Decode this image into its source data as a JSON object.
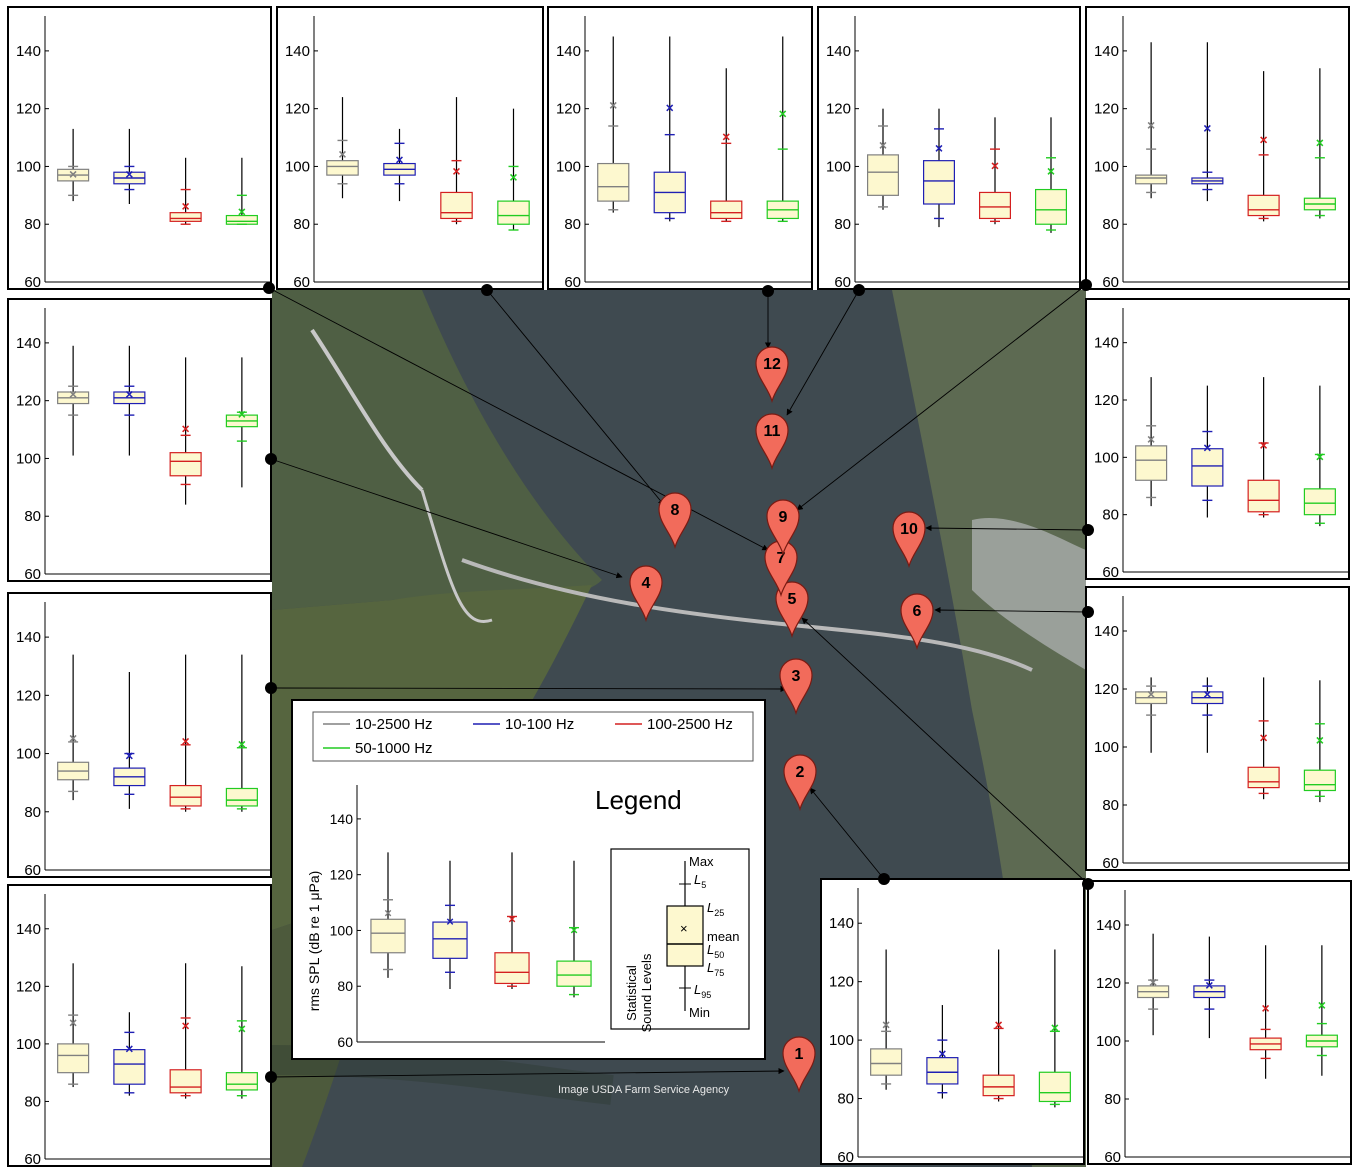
{
  "colors": {
    "broadband": "#808080",
    "low": "#1f1fb4",
    "high": "#d42020",
    "mid": "#22cc22",
    "box_fill": "#fdf8cf",
    "pin": "#f26b5b",
    "water": "#3f4a50",
    "land": "#5a6a4a"
  },
  "legend": {
    "title": "Legend",
    "ylabel": "rms SPL (dB re 1 μPa)",
    "series_labels": [
      "10-2500 Hz",
      "10-100 Hz",
      "100-2500 Hz",
      "50-1000 Hz"
    ],
    "stat_title_1": "Statistical",
    "stat_title_2": "Sound Levels",
    "stat_max": "Max",
    "stat_l5": "L5",
    "stat_l25": "L25",
    "stat_mean": "mean",
    "stat_l50": "L50",
    "stat_l75": "L75",
    "stat_l95": "L95",
    "stat_min": "Min"
  },
  "map": {
    "attribution": "Image USDA Farm Service Agency",
    "markers": [
      "1",
      "2",
      "3",
      "4",
      "5",
      "6",
      "7",
      "8",
      "9",
      "10",
      "11",
      "12"
    ]
  },
  "chart_data": [
    {
      "type": "box",
      "site": "top-1",
      "ylim": [
        60,
        150
      ],
      "yticks": [
        60,
        80,
        100,
        120,
        140
      ],
      "series": [
        {
          "min": 88,
          "l95": 90,
          "l75": 95,
          "l50": 97,
          "l25": 99,
          "l5": 100,
          "max": 113,
          "mean": 97
        },
        {
          "min": 87,
          "l95": 92,
          "l75": 94,
          "l50": 96,
          "l25": 98,
          "l5": 100,
          "max": 113,
          "mean": 97
        },
        {
          "min": 80,
          "l95": 80,
          "l75": 81,
          "l50": 82,
          "l25": 84,
          "l5": 92,
          "max": 103,
          "mean": 86
        },
        {
          "min": 80,
          "l95": 80,
          "l75": 80,
          "l50": 81,
          "l25": 83,
          "l5": 90,
          "max": 103,
          "mean": 84
        }
      ]
    },
    {
      "type": "box",
      "site": "top-2",
      "ylim": [
        60,
        150
      ],
      "yticks": [
        60,
        80,
        100,
        120,
        140
      ],
      "series": [
        {
          "min": 89,
          "l95": 94,
          "l75": 97,
          "l50": 100,
          "l25": 102,
          "l5": 109,
          "max": 124,
          "mean": 104
        },
        {
          "min": 88,
          "l95": 94,
          "l75": 97,
          "l50": 99,
          "l25": 101,
          "l5": 108,
          "max": 113,
          "mean": 102
        },
        {
          "min": 80,
          "l95": 81,
          "l75": 82,
          "l50": 84,
          "l25": 91,
          "l5": 102,
          "max": 124,
          "mean": 98
        },
        {
          "min": 78,
          "l95": 78,
          "l75": 80,
          "l50": 83,
          "l25": 88,
          "l5": 100,
          "max": 120,
          "mean": 96
        }
      ]
    },
    {
      "type": "box",
      "site": "top-3",
      "ylim": [
        60,
        150
      ],
      "yticks": [
        60,
        80,
        100,
        120,
        140
      ],
      "series": [
        {
          "min": 84,
          "l95": 85,
          "l75": 88,
          "l50": 93,
          "l25": 101,
          "l5": 114,
          "max": 145,
          "mean": 121
        },
        {
          "min": 81,
          "l95": 82,
          "l75": 84,
          "l50": 91,
          "l25": 98,
          "l5": 111,
          "max": 145,
          "mean": 120
        },
        {
          "min": 81,
          "l95": 81,
          "l75": 82,
          "l50": 84,
          "l25": 88,
          "l5": 108,
          "max": 134,
          "mean": 110
        },
        {
          "min": 81,
          "l95": 81,
          "l75": 82,
          "l50": 85,
          "l25": 88,
          "l5": 106,
          "max": 145,
          "mean": 118
        }
      ]
    },
    {
      "type": "box",
      "site": "top-4",
      "ylim": [
        60,
        150
      ],
      "yticks": [
        60,
        80,
        100,
        120,
        140
      ],
      "series": [
        {
          "min": 85,
          "l95": 86,
          "l75": 90,
          "l50": 98,
          "l25": 104,
          "l5": 114,
          "max": 120,
          "mean": 107
        },
        {
          "min": 79,
          "l95": 82,
          "l75": 87,
          "l50": 95,
          "l25": 102,
          "l5": 113,
          "max": 120,
          "mean": 106
        },
        {
          "min": 80,
          "l95": 81,
          "l75": 82,
          "l50": 86,
          "l25": 91,
          "l5": 106,
          "max": 117,
          "mean": 100
        },
        {
          "min": 77,
          "l95": 78,
          "l75": 80,
          "l50": 85,
          "l25": 92,
          "l5": 103,
          "max": 117,
          "mean": 98
        }
      ]
    },
    {
      "type": "box",
      "site": "top-5",
      "ylim": [
        60,
        150
      ],
      "yticks": [
        60,
        80,
        100,
        120,
        140
      ],
      "series": [
        {
          "min": 89,
          "l95": 91,
          "l75": 94,
          "l50": 96,
          "l25": 97,
          "l5": 106,
          "max": 143,
          "mean": 114
        },
        {
          "min": 88,
          "l95": 92,
          "l75": 94,
          "l50": 95,
          "l25": 96,
          "l5": 98,
          "max": 143,
          "mean": 113
        },
        {
          "min": 81,
          "l95": 82,
          "l75": 83,
          "l50": 85,
          "l25": 90,
          "l5": 104,
          "max": 133,
          "mean": 109
        },
        {
          "min": 82,
          "l95": 83,
          "l75": 85,
          "l50": 87,
          "l25": 89,
          "l5": 103,
          "max": 134,
          "mean": 108
        }
      ]
    },
    {
      "type": "box",
      "site": "left-1",
      "ylim": [
        60,
        150
      ],
      "yticks": [
        60,
        80,
        100,
        120,
        140
      ],
      "series": [
        {
          "min": 101,
          "l95": 115,
          "l75": 119,
          "l50": 121,
          "l25": 123,
          "l5": 125,
          "max": 139,
          "mean": 122
        },
        {
          "min": 101,
          "l95": 115,
          "l75": 119,
          "l50": 121,
          "l25": 123,
          "l5": 125,
          "max": 139,
          "mean": 122
        },
        {
          "min": 84,
          "l95": 91,
          "l75": 94,
          "l50": 99,
          "l25": 102,
          "l5": 108,
          "max": 135,
          "mean": 110
        },
        {
          "min": 90,
          "l95": 106,
          "l75": 111,
          "l50": 113,
          "l25": 115,
          "l5": 116,
          "max": 135,
          "mean": 115
        }
      ]
    },
    {
      "type": "box",
      "site": "left-2",
      "ylim": [
        60,
        150
      ],
      "yticks": [
        60,
        80,
        100,
        120,
        140
      ],
      "series": [
        {
          "min": 84,
          "l95": 87,
          "l75": 91,
          "l50": 94,
          "l25": 97,
          "l5": 104,
          "max": 134,
          "mean": 105
        },
        {
          "min": 81,
          "l95": 86,
          "l75": 89,
          "l50": 92,
          "l25": 95,
          "l5": 100,
          "max": 128,
          "mean": 99
        },
        {
          "min": 80,
          "l95": 81,
          "l75": 82,
          "l50": 85,
          "l25": 89,
          "l5": 103,
          "max": 134,
          "mean": 104
        },
        {
          "min": 80,
          "l95": 81,
          "l75": 82,
          "l50": 84,
          "l25": 88,
          "l5": 102,
          "max": 134,
          "mean": 103
        }
      ]
    },
    {
      "type": "box",
      "site": "left-3",
      "ylim": [
        60,
        150
      ],
      "yticks": [
        60,
        80,
        100,
        120,
        140
      ],
      "series": [
        {
          "min": 85,
          "l95": 86,
          "l75": 90,
          "l50": 96,
          "l25": 100,
          "l5": 110,
          "max": 128,
          "mean": 107
        },
        {
          "min": 82,
          "l95": 83,
          "l75": 86,
          "l50": 93,
          "l25": 98,
          "l5": 104,
          "max": 111,
          "mean": 98
        },
        {
          "min": 81,
          "l95": 82,
          "l75": 83,
          "l50": 85,
          "l25": 91,
          "l5": 109,
          "max": 128,
          "mean": 106
        },
        {
          "min": 81,
          "l95": 82,
          "l75": 84,
          "l50": 86,
          "l25": 90,
          "l5": 108,
          "max": 127,
          "mean": 105
        }
      ]
    },
    {
      "type": "box",
      "site": "right-1",
      "ylim": [
        60,
        150
      ],
      "yticks": [
        60,
        80,
        100,
        120,
        140
      ],
      "series": [
        {
          "min": 83,
          "l95": 86,
          "l75": 92,
          "l50": 99,
          "l25": 104,
          "l5": 111,
          "max": 128,
          "mean": 106
        },
        {
          "min": 79,
          "l95": 85,
          "l75": 90,
          "l50": 97,
          "l25": 103,
          "l5": 109,
          "max": 125,
          "mean": 103
        },
        {
          "min": 79,
          "l95": 80,
          "l75": 81,
          "l50": 85,
          "l25": 92,
          "l5": 105,
          "max": 128,
          "mean": 104
        },
        {
          "min": 76,
          "l95": 77,
          "l75": 80,
          "l50": 84,
          "l25": 89,
          "l5": 101,
          "max": 125,
          "mean": 100
        }
      ]
    },
    {
      "type": "box",
      "site": "right-2",
      "ylim": [
        60,
        150
      ],
      "yticks": [
        60,
        80,
        100,
        120,
        140
      ],
      "series": [
        {
          "min": 98,
          "l95": 111,
          "l75": 115,
          "l50": 117,
          "l25": 119,
          "l5": 121,
          "max": 124,
          "mean": 118
        },
        {
          "min": 98,
          "l95": 111,
          "l75": 115,
          "l50": 117,
          "l25": 119,
          "l5": 121,
          "max": 124,
          "mean": 118
        },
        {
          "min": 82,
          "l95": 84,
          "l75": 86,
          "l50": 88,
          "l25": 93,
          "l5": 109,
          "max": 124,
          "mean": 103
        },
        {
          "min": 81,
          "l95": 83,
          "l75": 85,
          "l50": 87,
          "l25": 92,
          "l5": 108,
          "max": 123,
          "mean": 102
        }
      ]
    },
    {
      "type": "box",
      "site": "bottom-1",
      "ylim": [
        60,
        150
      ],
      "yticks": [
        60,
        80,
        100,
        120,
        140
      ],
      "series": [
        {
          "min": 83,
          "l95": 85,
          "l75": 88,
          "l50": 92,
          "l25": 97,
          "l5": 103,
          "max": 131,
          "mean": 105
        },
        {
          "min": 80,
          "l95": 82,
          "l75": 85,
          "l50": 89,
          "l25": 94,
          "l5": 100,
          "max": 112,
          "mean": 95
        },
        {
          "min": 79,
          "l95": 80,
          "l75": 81,
          "l50": 84,
          "l25": 88,
          "l5": 104,
          "max": 131,
          "mean": 105
        },
        {
          "min": 77,
          "l95": 78,
          "l75": 79,
          "l50": 82,
          "l25": 89,
          "l5": 103,
          "max": 131,
          "mean": 104
        }
      ]
    },
    {
      "type": "box",
      "site": "bottom-2",
      "ylim": [
        60,
        150
      ],
      "yticks": [
        60,
        80,
        100,
        120,
        140
      ],
      "series": [
        {
          "min": 102,
          "l95": 111,
          "l75": 115,
          "l50": 117,
          "l25": 119,
          "l5": 121,
          "max": 137,
          "mean": 120
        },
        {
          "min": 101,
          "l95": 111,
          "l75": 115,
          "l50": 117,
          "l25": 119,
          "l5": 121,
          "max": 136,
          "mean": 119
        },
        {
          "min": 87,
          "l95": 94,
          "l75": 97,
          "l50": 99,
          "l25": 101,
          "l5": 104,
          "max": 133,
          "mean": 111
        },
        {
          "min": 88,
          "l95": 95,
          "l75": 98,
          "l50": 100,
          "l25": 102,
          "l5": 106,
          "max": 133,
          "mean": 112
        }
      ]
    },
    {
      "type": "box",
      "site": "legend-example",
      "ylim": [
        60,
        150
      ],
      "yticks": [
        60,
        80,
        100,
        120,
        140
      ],
      "series": [
        {
          "min": 83,
          "l95": 86,
          "l75": 92,
          "l50": 99,
          "l25": 104,
          "l5": 111,
          "max": 128,
          "mean": 106
        },
        {
          "min": 79,
          "l95": 85,
          "l75": 90,
          "l50": 97,
          "l25": 103,
          "l5": 109,
          "max": 125,
          "mean": 103
        },
        {
          "min": 79,
          "l95": 80,
          "l75": 81,
          "l50": 85,
          "l25": 92,
          "l5": 105,
          "max": 128,
          "mean": 104
        },
        {
          "min": 76,
          "l95": 77,
          "l75": 80,
          "l50": 84,
          "l25": 89,
          "l5": 101,
          "max": 125,
          "mean": 100
        }
      ]
    }
  ]
}
